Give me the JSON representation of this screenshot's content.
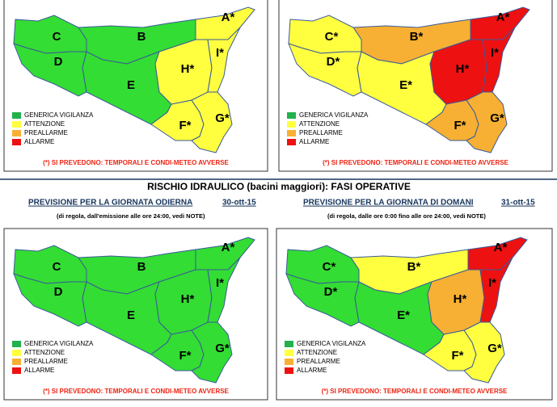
{
  "title": "RISCHIO IDRAULICO (bacini maggiori): FASI OPERATIVE",
  "forecasts": [
    {
      "heading": "PREVISIONE PER LA GIORNATA ODIERNA",
      "date": "30-ott-15",
      "note": "(di regola, dall'emissione alle ore 24:00, vedi NOTE)"
    },
    {
      "heading": "PREVISIONE PER LA GIORNATA DI DOMANI",
      "date": "31-ott-15",
      "note": "(di regola, dalle ore 0:00 fino alle ore 24:00, vedi NOTE)"
    }
  ],
  "legend": [
    {
      "label": "GENERICA VIGILANZA",
      "color": "#22b14c"
    },
    {
      "label": "ATTENZIONE",
      "color": "#ffff40"
    },
    {
      "label": "PREALLARME",
      "color": "#f7b033"
    },
    {
      "label": "ALLARME",
      "color": "#ee1111"
    }
  ],
  "footnote": "(*) SI PREVEDONO: TEMPORALI E CONDI-METEO AVVERSE",
  "panels": [
    {
      "zones": [
        {
          "label": "A*",
          "color": "#ffff40"
        },
        {
          "label": "B",
          "color": "#33dd33"
        },
        {
          "label": "C",
          "color": "#33dd33"
        },
        {
          "label": "D",
          "color": "#33dd33"
        },
        {
          "label": "E",
          "color": "#33dd33"
        },
        {
          "label": "F*",
          "color": "#ffff40"
        },
        {
          "label": "G*",
          "color": "#ffff40"
        },
        {
          "label": "H*",
          "color": "#ffff40"
        },
        {
          "label": "I*",
          "color": "#ffff40"
        }
      ]
    },
    {
      "zones": [
        {
          "label": "A*",
          "color": "#ee1111"
        },
        {
          "label": "B*",
          "color": "#f7b033"
        },
        {
          "label": "C*",
          "color": "#ffff40"
        },
        {
          "label": "D*",
          "color": "#ffff40"
        },
        {
          "label": "E*",
          "color": "#ffff40"
        },
        {
          "label": "F*",
          "color": "#f7b033"
        },
        {
          "label": "G*",
          "color": "#f7b033"
        },
        {
          "label": "H*",
          "color": "#ee1111"
        },
        {
          "label": "I*",
          "color": "#ee1111"
        }
      ]
    },
    {
      "zones": [
        {
          "label": "A*",
          "color": "#33dd33"
        },
        {
          "label": "B",
          "color": "#33dd33"
        },
        {
          "label": "C",
          "color": "#33dd33"
        },
        {
          "label": "D",
          "color": "#33dd33"
        },
        {
          "label": "E",
          "color": "#33dd33"
        },
        {
          "label": "F*",
          "color": "#33dd33"
        },
        {
          "label": "G*",
          "color": "#33dd33"
        },
        {
          "label": "H*",
          "color": "#33dd33"
        },
        {
          "label": "I*",
          "color": "#33dd33"
        }
      ]
    },
    {
      "zones": [
        {
          "label": "A*",
          "color": "#ee1111"
        },
        {
          "label": "B*",
          "color": "#ffff40"
        },
        {
          "label": "C*",
          "color": "#33dd33"
        },
        {
          "label": "D*",
          "color": "#33dd33"
        },
        {
          "label": "E*",
          "color": "#33dd33"
        },
        {
          "label": "F*",
          "color": "#ffff40"
        },
        {
          "label": "G*",
          "color": "#ffff40"
        },
        {
          "label": "H*",
          "color": "#f7b033"
        },
        {
          "label": "I*",
          "color": "#ee1111"
        }
      ]
    }
  ]
}
